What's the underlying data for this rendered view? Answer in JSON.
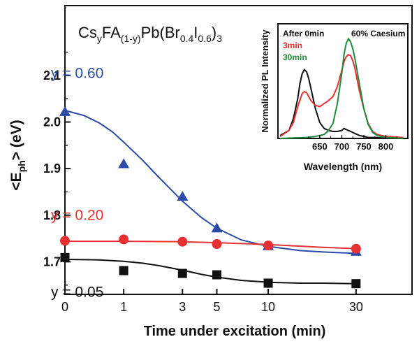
{
  "chart_data": [
    {
      "type": "scatter",
      "title_parts": {
        "cs": "Cs",
        "y1": "y",
        "fa": "FA",
        "sub_1y": "(1-y)",
        "pb": "Pb(Br",
        "sub_04": "0.4",
        "i": "I",
        "sub_06": "0.6",
        "close": ")",
        "sub_3": "3"
      },
      "xlabel": "Time under excitation (min)",
      "ylabel_parts": {
        "main": "<E",
        "sub": "ph",
        "rest": "> (eV)"
      },
      "x_scale": "log(1+t)",
      "x_ticks": [
        "0",
        "1",
        "3",
        "5",
        "10",
        "30"
      ],
      "x_tick_values": [
        0,
        1,
        3,
        5,
        10,
        30
      ],
      "y_ticks": [
        "1.7",
        "1.8",
        "1.9",
        "2.0",
        "2.1"
      ],
      "y_tick_values": [
        1.7,
        1.8,
        1.9,
        2.0,
        2.1
      ],
      "ylim": [
        1.63,
        2.25
      ],
      "series": [
        {
          "name": "y = 0.60",
          "color": "#2b4ba8",
          "marker": "triangle",
          "x": [
            0,
            1,
            3,
            5,
            10,
            30
          ],
          "y": [
            2.022,
            1.91,
            1.84,
            1.772,
            1.734,
            1.722
          ],
          "fit_x": [
            0,
            0.25,
            0.5,
            0.75,
            1,
            1.5,
            2,
            3,
            4,
            5,
            7,
            10,
            15,
            20,
            30
          ],
          "fit_y": [
            2.025,
            2.014,
            1.998,
            1.979,
            1.957,
            1.918,
            1.883,
            1.83,
            1.795,
            1.772,
            1.747,
            1.733,
            1.724,
            1.721,
            1.718
          ]
        },
        {
          "name": "y = 0.20",
          "color": "#e53131",
          "marker": "circle",
          "x": [
            0,
            1,
            3,
            5,
            10,
            30
          ],
          "y": [
            1.745,
            1.748,
            1.743,
            1.738,
            1.735,
            1.728
          ],
          "fit_x": [
            0,
            1,
            3,
            5,
            10,
            20,
            30
          ],
          "fit_y": [
            1.744,
            1.744,
            1.743,
            1.741,
            1.737,
            1.731,
            1.728
          ]
        },
        {
          "name": "y = 0.05",
          "color": "#111111",
          "marker": "square",
          "x": [
            0,
            1,
            3,
            5,
            10,
            30
          ],
          "y": [
            1.709,
            1.681,
            1.675,
            1.672,
            1.654,
            1.653
          ],
          "fit_x": [
            0,
            0.5,
            1,
            1.5,
            2,
            3,
            4,
            5,
            7,
            10,
            15,
            20,
            30
          ],
          "fit_y": [
            1.705,
            1.704,
            1.701,
            1.697,
            1.692,
            1.682,
            1.673,
            1.667,
            1.66,
            1.656,
            1.654,
            1.654,
            1.653
          ]
        }
      ]
    },
    {
      "type": "line",
      "inset": true,
      "xlabel": "Wavelength (nm)",
      "ylabel": "Normalized PL Intensity",
      "x_ticks": [
        "650",
        "700",
        "750",
        "800"
      ],
      "x_tick_values": [
        650,
        700,
        750,
        800
      ],
      "xlim": [
        555,
        850
      ],
      "ylim": [
        0,
        1.15
      ],
      "annotation": "60% Caesium",
      "series": [
        {
          "name": "After 0min",
          "color": "#111111",
          "x": [
            560,
            580,
            590,
            600,
            605,
            610,
            615,
            620,
            625,
            630,
            640,
            650,
            660,
            670,
            680,
            690,
            700,
            705,
            710,
            715,
            720,
            730,
            740,
            750,
            760,
            780,
            800,
            840
          ],
          "y": [
            0.03,
            0.08,
            0.2,
            0.4,
            0.55,
            0.65,
            0.69,
            0.67,
            0.6,
            0.5,
            0.3,
            0.16,
            0.1,
            0.08,
            0.07,
            0.07,
            0.08,
            0.1,
            0.09,
            0.08,
            0.07,
            0.05,
            0.03,
            0.02,
            0.01,
            0.01,
            0.0,
            0.0
          ]
        },
        {
          "name": "3min",
          "color": "#e53131",
          "x": [
            560,
            580,
            590,
            600,
            610,
            615,
            620,
            625,
            630,
            640,
            650,
            660,
            670,
            680,
            690,
            700,
            705,
            710,
            715,
            720,
            725,
            730,
            740,
            750,
            760,
            770,
            780,
            800,
            840
          ],
          "y": [
            0.02,
            0.08,
            0.16,
            0.32,
            0.45,
            0.47,
            0.46,
            0.42,
            0.38,
            0.33,
            0.32,
            0.35,
            0.38,
            0.42,
            0.52,
            0.68,
            0.77,
            0.82,
            0.84,
            0.83,
            0.78,
            0.7,
            0.48,
            0.3,
            0.15,
            0.07,
            0.04,
            0.02,
            0.01
          ]
        },
        {
          "name": "30min",
          "color": "#1f8a3c",
          "x": [
            560,
            620,
            640,
            660,
            670,
            680,
            690,
            700,
            705,
            710,
            715,
            720,
            725,
            730,
            740,
            750,
            760,
            770,
            780,
            800,
            840
          ],
          "y": [
            0.0,
            0.01,
            0.02,
            0.04,
            0.08,
            0.15,
            0.35,
            0.65,
            0.84,
            0.95,
            1.0,
            0.97,
            0.9,
            0.8,
            0.55,
            0.3,
            0.14,
            0.06,
            0.03,
            0.01,
            0.0
          ]
        }
      ]
    }
  ]
}
